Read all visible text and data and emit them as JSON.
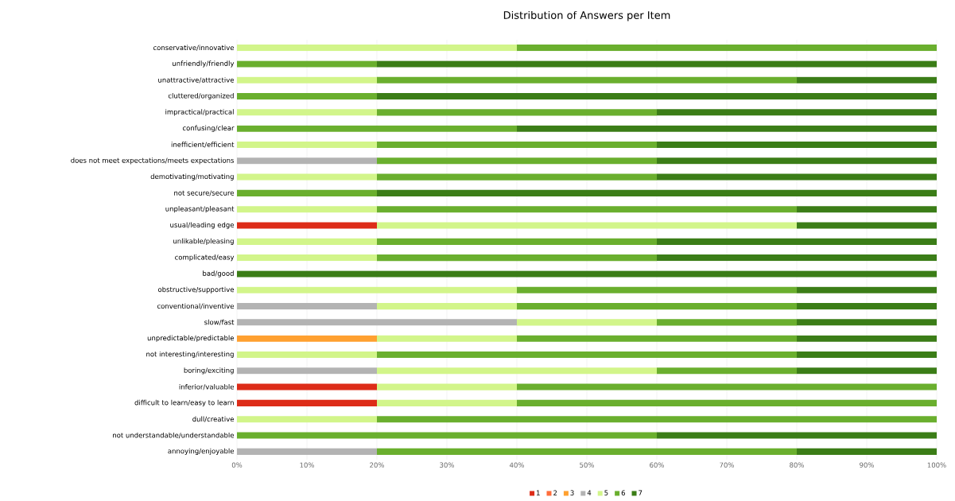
{
  "chart_data": {
    "type": "bar",
    "orientation": "horizontal",
    "stacked": true,
    "title": "Distribution of Answers per Item",
    "categories": [
      "conservative/innovative",
      "unfriendly/friendly",
      "unattractive/attractive",
      "cluttered/organized",
      "impractical/practical",
      "confusing/clear",
      "inefficient/efficient",
      "does not meet expectations/meets expectations",
      "demotivating/motivating",
      "not secure/secure",
      "unpleasant/pleasant",
      "usual/leading edge",
      "unlikable/pleasing",
      "complicated/easy",
      "bad/good",
      "obstructive/supportive",
      "conventional/inventive",
      "slow/fast",
      "unpredictable/predictable",
      "not interesting/interesting",
      "boring/exciting",
      "inferior/valuable",
      "difficult to learn/easy to learn",
      "dull/creative",
      "not understandable/understandable",
      "annoying/enjoyable"
    ],
    "series": [
      {
        "name": "1",
        "color": "#dd2c18",
        "values": [
          0,
          0,
          0,
          0,
          0,
          0,
          0,
          0,
          0,
          0,
          0,
          20,
          0,
          0,
          0,
          0,
          0,
          0,
          0,
          0,
          0,
          20,
          20,
          0,
          0,
          0
        ]
      },
      {
        "name": "2",
        "color": "#ff6e3c",
        "values": [
          0,
          0,
          0,
          0,
          0,
          0,
          0,
          0,
          0,
          0,
          0,
          0,
          0,
          0,
          0,
          0,
          0,
          0,
          0,
          0,
          0,
          0,
          0,
          0,
          0,
          0
        ]
      },
      {
        "name": "3",
        "color": "#ffa030",
        "values": [
          0,
          0,
          0,
          0,
          0,
          0,
          0,
          0,
          0,
          0,
          0,
          0,
          0,
          0,
          0,
          0,
          0,
          0,
          20,
          0,
          0,
          0,
          0,
          0,
          0,
          0
        ]
      },
      {
        "name": "4",
        "color": "#b3b3b3",
        "values": [
          0,
          0,
          0,
          0,
          0,
          0,
          0,
          20,
          0,
          0,
          0,
          0,
          0,
          0,
          0,
          0,
          20,
          40,
          0,
          0,
          20,
          0,
          0,
          0,
          0,
          20
        ]
      },
      {
        "name": "5",
        "color": "#d2f58a",
        "values": [
          40,
          0,
          20,
          0,
          20,
          0,
          20,
          0,
          20,
          0,
          20,
          60,
          20,
          20,
          0,
          40,
          20,
          20,
          20,
          20,
          40,
          20,
          20,
          20,
          0,
          0
        ]
      },
      {
        "name": "6",
        "color": "#6aaf2e",
        "values": [
          60,
          20,
          60,
          20,
          40,
          40,
          40,
          40,
          40,
          20,
          60,
          0,
          40,
          40,
          0,
          40,
          40,
          20,
          40,
          60,
          20,
          60,
          60,
          80,
          60,
          60
        ]
      },
      {
        "name": "7",
        "color": "#3b7d17",
        "values": [
          0,
          80,
          20,
          80,
          40,
          60,
          40,
          40,
          40,
          80,
          20,
          20,
          40,
          40,
          100,
          20,
          20,
          20,
          20,
          20,
          20,
          0,
          0,
          0,
          40,
          20
        ]
      }
    ],
    "xlim": [
      0,
      100
    ],
    "xticks": [
      {
        "value": 0,
        "label": "0%"
      },
      {
        "value": 10,
        "label": "10%"
      },
      {
        "value": 20,
        "label": "20%"
      },
      {
        "value": 30,
        "label": "30%"
      },
      {
        "value": 40,
        "label": "40%"
      },
      {
        "value": 50,
        "label": "50%"
      },
      {
        "value": 60,
        "label": "60%"
      },
      {
        "value": 70,
        "label": "70%"
      },
      {
        "value": 80,
        "label": "80%"
      },
      {
        "value": 90,
        "label": "90%"
      },
      {
        "value": 100,
        "label": "100%"
      }
    ],
    "grid": "x",
    "legend": "bottom"
  }
}
